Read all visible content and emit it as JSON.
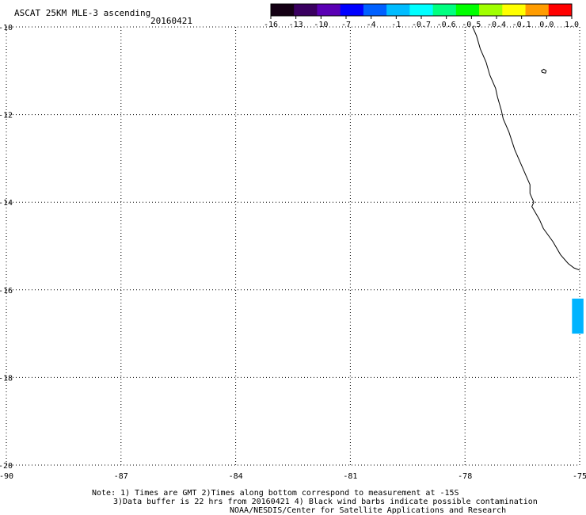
{
  "header": {
    "title": "ASCAT 25KM MLE-3 ascending",
    "date": "20160421"
  },
  "colorbar": {
    "labels": [
      "-16",
      "-13",
      "-10",
      "-7",
      "-4",
      "-1",
      "-0.7",
      "-0.6",
      "-0.5",
      "-0.4",
      "-0.1",
      "0.0",
      "1.0"
    ],
    "colors": [
      "#140014",
      "#3a0060",
      "#5a00b4",
      "#0000ff",
      "#0060ff",
      "#00bcff",
      "#00ffff",
      "#00ff80",
      "#00ff00",
      "#a0ff00",
      "#ffff00",
      "#ff9c00",
      "#ff0000"
    ]
  },
  "map": {
    "lat_ticks": [
      "-10",
      "-12",
      "-14",
      "-16",
      "-18",
      "-20"
    ],
    "lon_ticks": [
      "-90",
      "-87",
      "-84",
      "-81",
      "-78",
      "-75"
    ],
    "lon_range": [
      -90,
      -75
    ],
    "lat_range": [
      -20,
      -10
    ],
    "data_cell": {
      "lon_min": -75.2,
      "lon_max": -74.9,
      "lat_min": -17.0,
      "lat_max": -16.2,
      "color": "#00b4ff"
    }
  },
  "notes": {
    "line1": "Note: 1) Times are GMT 2)Times along bottom correspond to measurement at -15S",
    "line2": "3)Data buffer is 22 hrs from 20160421 4) Black wind barbs indicate possible contamination",
    "line3": "NOAA/NESDIS/Center for Satellite Applications and Research"
  }
}
